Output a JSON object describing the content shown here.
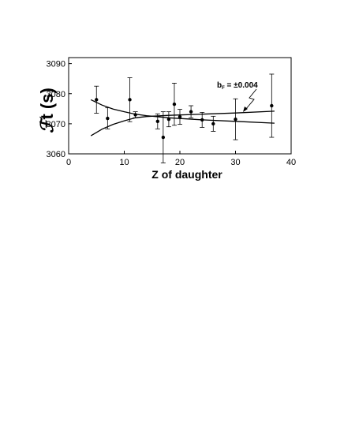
{
  "chart_data": {
    "type": "scatter",
    "xlabel": "Z of daughter",
    "ylabel_script": "ℱ",
    "ylabel_tail": "t (s)",
    "xlim": [
      0,
      40
    ],
    "ylim": [
      3060,
      3092
    ],
    "x_ticks": [
      0,
      10,
      20,
      30,
      40
    ],
    "y_ticks": [
      3060,
      3070,
      3080,
      3090
    ],
    "grid": false,
    "annotation": {
      "label": "b",
      "subscript": "F",
      "value": " = ±0.004"
    },
    "points": [
      {
        "x": 5,
        "y": 3078.0,
        "err": 4.5
      },
      {
        "x": 7,
        "y": 3071.8,
        "err": 3.5
      },
      {
        "x": 11,
        "y": 3078.0,
        "err": 7.3
      },
      {
        "x": 12,
        "y": 3073.0,
        "err": 1.0
      },
      {
        "x": 16,
        "y": 3070.8,
        "err": 2.5
      },
      {
        "x": 17,
        "y": 3065.5,
        "err": 8.5
      },
      {
        "x": 18,
        "y": 3071.5,
        "err": 2.5
      },
      {
        "x": 19,
        "y": 3076.5,
        "err": 7.0
      },
      {
        "x": 20,
        "y": 3072.3,
        "err": 2.5
      },
      {
        "x": 22,
        "y": 3074.0,
        "err": 2.0
      },
      {
        "x": 24,
        "y": 3071.3,
        "err": 2.5
      },
      {
        "x": 26,
        "y": 3070.0,
        "err": 2.5
      },
      {
        "x": 30,
        "y": 3071.5,
        "err": 6.8
      },
      {
        "x": 36.5,
        "y": 3076.0,
        "err": 10.5
      }
    ],
    "curves": [
      {
        "x": [
          4,
          6,
          8,
          10,
          12,
          14,
          18,
          24,
          30,
          37
        ],
        "y": [
          3078.0,
          3076.2,
          3074.9,
          3074.0,
          3073.2,
          3072.7,
          3072.0,
          3071.3,
          3070.8,
          3070.2
        ]
      },
      {
        "x": [
          4,
          6,
          8,
          10,
          12,
          14,
          18,
          24,
          30,
          37
        ],
        "y": [
          3066.0,
          3068.2,
          3069.8,
          3071.0,
          3072.0,
          3072.4,
          3072.8,
          3073.2,
          3073.6,
          3074.2
        ]
      }
    ]
  }
}
